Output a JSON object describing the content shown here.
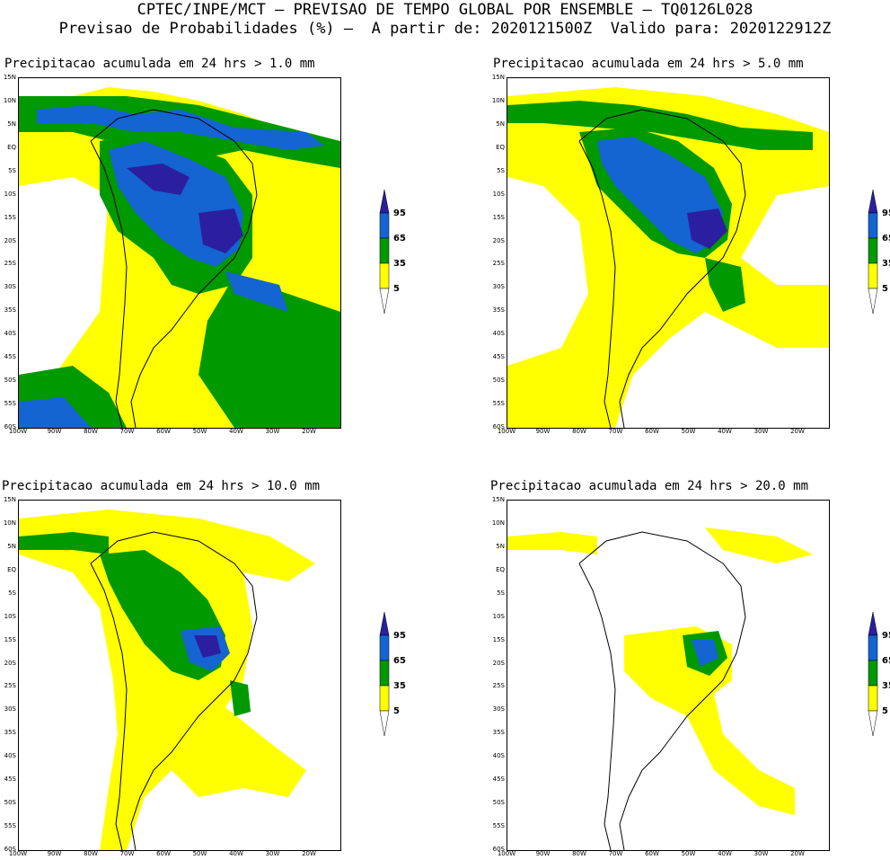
{
  "header": {
    "line1": "CPTEC/INPE/MCT – PREVISAO DE TEMPO GLOBAL POR ENSEMBLE – TQ0126L028",
    "line2": "Previsao de Probabilidades (%) –  A partir de: 2020121500Z  Valido para: 2020122912Z"
  },
  "panels": [
    {
      "title": "Precipitacao acumulada em 24 hrs > 1.0 mm",
      "threshold_mm": 1.0
    },
    {
      "title": "Precipitacao acumulada em 24 hrs > 5.0 mm",
      "threshold_mm": 5.0
    },
    {
      "title": "Precipitacao acumulada em 24 hrs > 10.0 mm",
      "threshold_mm": 10.0
    },
    {
      "title": "Precipitacao acumulada em 24 hrs > 20.0 mm",
      "threshold_mm": 20.0
    }
  ],
  "latitude_labels": [
    "15N",
    "10N",
    "5N",
    "EQ",
    "5S",
    "10S",
    "15S",
    "20S",
    "25S",
    "30S",
    "35S",
    "40S",
    "45S",
    "50S",
    "55S",
    "60S"
  ],
  "longitude_labels": [
    "100W",
    "90W",
    "80W",
    "70W",
    "60W",
    "50W",
    "40W",
    "30W",
    "20W"
  ],
  "legend": {
    "levels": [
      "95",
      "65",
      "35",
      "5"
    ],
    "colors": {
      "yellow": "#ffff00",
      "green": "#009900",
      "blue": "#1464d2",
      "indigo": "#2b1fa0"
    }
  }
}
